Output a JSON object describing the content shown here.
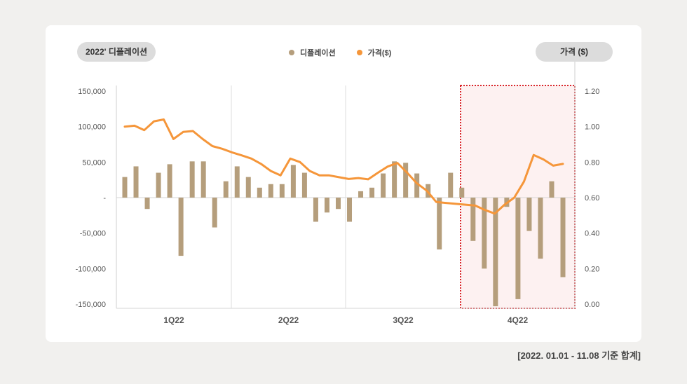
{
  "left_axis_pill": "2022' 디플레이션",
  "right_axis_pill": "가격 ($)",
  "footnote": "[2022. 01.01 - 11.08 기준 합계]",
  "colors": {
    "bar": "#b59e7c",
    "line": "#f5963a",
    "highlight_fill": "#fdf1f1",
    "highlight_border": "#d9252a",
    "background": "#f1f0ee"
  },
  "chart_data": {
    "type": "bar+line",
    "legend": [
      {
        "label": "디플레이션",
        "color": "#b59e7c"
      },
      {
        "label": "가격($)",
        "color": "#f5963a"
      }
    ],
    "quarters": [
      "1Q22",
      "2Q22",
      "3Q22",
      "4Q22"
    ],
    "y_left": {
      "ticks": [
        150000,
        100000,
        50000,
        0,
        -50000,
        -100000,
        -150000
      ],
      "tick_labels": [
        "150,000",
        "100,000",
        "50,000",
        "-",
        "-50,000",
        "-100,000",
        "-150,000"
      ],
      "range": [
        -150000,
        150000
      ]
    },
    "y_right": {
      "ticks": [
        1.2,
        1.0,
        0.8,
        0.6,
        0.4,
        0.2,
        0.0
      ],
      "tick_labels": [
        "1.20",
        "1.00",
        "0.80",
        "0.60",
        "0.40",
        "0.20",
        "0.00"
      ],
      "range": [
        0,
        1.2
      ]
    },
    "series": [
      {
        "name": "디플레이션",
        "kind": "bar",
        "values": [
          29000,
          44000,
          -16000,
          35000,
          47000,
          -82000,
          51000,
          51000,
          -42000,
          23000,
          44000,
          29000,
          14000,
          19000,
          19000,
          46000,
          35000,
          -34000,
          -21000,
          -16000,
          -34000,
          9000,
          14000,
          34000,
          51000,
          49000,
          34000,
          19000,
          -73000,
          35000,
          14000,
          -61000,
          -100000,
          -153000,
          -13000,
          -143000,
          -47000,
          -86000,
          23000,
          -112000
        ]
      },
      {
        "name": "가격($)",
        "kind": "line",
        "values": [
          1.0,
          1.005,
          0.98,
          1.03,
          1.04,
          0.93,
          0.97,
          0.975,
          0.93,
          0.89,
          0.875,
          0.855,
          0.838,
          0.82,
          0.79,
          0.75,
          0.725,
          0.82,
          0.8,
          0.75,
          0.725,
          0.725,
          0.715,
          0.705,
          0.71,
          0.703,
          0.74,
          0.775,
          0.795,
          0.74,
          0.68,
          0.64,
          0.575,
          0.57,
          0.565,
          0.56,
          0.555,
          0.53,
          0.51,
          0.56,
          0.6,
          0.69,
          0.84,
          0.815,
          0.78,
          0.79
        ]
      }
    ],
    "highlighted_period": "4Q22"
  }
}
